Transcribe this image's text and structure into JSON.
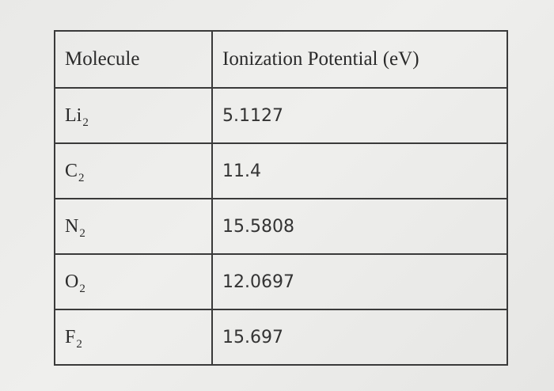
{
  "table": {
    "headers": [
      "Molecule",
      "Ionization Potential (eV)"
    ],
    "rows": [
      {
        "molecule": "Li",
        "subscript": "2",
        "value": "5.1127"
      },
      {
        "molecule": "C",
        "subscript": "2",
        "value": "11.4"
      },
      {
        "molecule": "N",
        "subscript": "2",
        "value": "15.5808"
      },
      {
        "molecule": "O",
        "subscript": "2",
        "value": "12.0697"
      },
      {
        "molecule": "F",
        "subscript": "2",
        "value": "15.697"
      }
    ]
  }
}
